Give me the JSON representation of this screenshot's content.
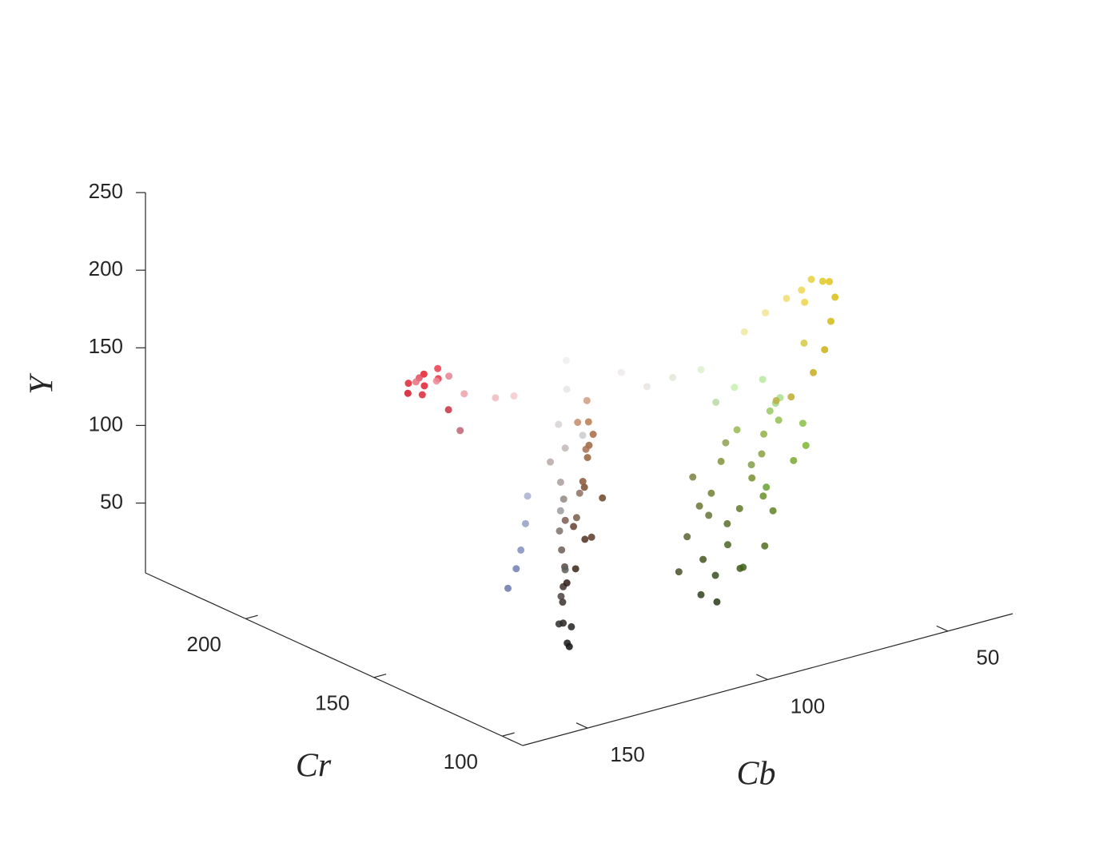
{
  "chart_data": {
    "type": "scatter3d",
    "xlabel": "Cb",
    "ylabel": "Cr",
    "zlabel": "Y",
    "xlim": [
      32,
      168
    ],
    "ylim": [
      92,
      239
    ],
    "zlim": [
      5,
      250
    ],
    "xticks": [
      50,
      100,
      150
    ],
    "yticks": [
      100,
      150,
      200
    ],
    "zticks": [
      50,
      100,
      150,
      200,
      250
    ],
    "x": [
      128,
      130,
      126,
      129,
      127,
      131,
      125,
      128,
      130,
      126,
      129,
      127,
      131,
      128,
      126,
      133,
      124,
      132,
      122,
      134,
      129,
      125,
      112,
      108,
      114,
      106,
      110,
      104,
      112,
      107,
      115,
      103,
      109,
      116,
      105,
      111,
      118,
      113,
      101,
      100,
      96,
      98,
      94,
      92,
      90,
      95,
      88,
      93,
      86,
      84,
      90,
      82,
      98,
      101,
      104,
      87,
      80,
      78,
      85,
      88,
      92,
      97,
      83,
      95,
      91,
      76,
      89,
      99,
      86,
      94,
      95,
      90,
      100,
      105,
      88,
      110,
      98,
      85,
      115,
      78,
      70,
      62,
      55,
      48,
      42,
      40,
      44,
      50,
      56,
      65,
      38,
      52,
      72,
      60,
      97,
      95,
      99,
      96,
      98,
      94,
      100,
      96,
      102,
      110,
      115,
      118,
      120,
      122,
      112,
      108,
      150,
      152,
      148,
      155,
      146
    ],
    "y": [
      130,
      128,
      132,
      131,
      134,
      129,
      136,
      133,
      131,
      135,
      132,
      133,
      130,
      131,
      134,
      127,
      138,
      126,
      140,
      125,
      136,
      129,
      150,
      152,
      148,
      155,
      150,
      156,
      146,
      152,
      145,
      158,
      148,
      144,
      153,
      147,
      140,
      152,
      155,
      118,
      118,
      120,
      116,
      119,
      117,
      121,
      115,
      120,
      114,
      116,
      118,
      113,
      124,
      122,
      121,
      112,
      110,
      108,
      111,
      110,
      114,
      116,
      115,
      122,
      121,
      112,
      108,
      120,
      118,
      110,
      112,
      108,
      118,
      122,
      104,
      125,
      115,
      110,
      128,
      132,
      135,
      138,
      142,
      148,
      152,
      150,
      146,
      140,
      136,
      132,
      155,
      145,
      128,
      134,
      230,
      233,
      228,
      226,
      235,
      229,
      232,
      222,
      225,
      215,
      200,
      185,
      170,
      160,
      195,
      205,
      118,
      117,
      119,
      116,
      121
    ],
    "z": [
      15,
      20,
      25,
      30,
      40,
      50,
      60,
      75,
      90,
      105,
      120,
      140,
      160,
      180,
      195,
      35,
      45,
      70,
      85,
      110,
      130,
      150,
      40,
      55,
      70,
      85,
      95,
      110,
      120,
      130,
      140,
      100,
      60,
      80,
      120,
      150,
      100,
      30,
      75,
      40,
      50,
      60,
      70,
      80,
      90,
      100,
      110,
      120,
      125,
      135,
      140,
      145,
      110,
      75,
      55,
      100,
      120,
      130,
      90,
      70,
      55,
      35,
      150,
      85,
      130,
      140,
      110,
      95,
      115,
      60,
      175,
      180,
      185,
      180,
      170,
      175,
      165,
      160,
      185,
      185,
      190,
      192,
      190,
      188,
      180,
      170,
      160,
      150,
      142,
      135,
      175,
      178,
      140,
      165,
      88,
      92,
      85,
      95,
      80,
      98,
      90,
      78,
      100,
      110,
      125,
      130,
      140,
      150,
      95,
      120,
      100,
      90,
      115,
      80,
      130
    ],
    "colors": [
      "#111111",
      "#1a1a1a",
      "#222222",
      "#2a2522",
      "#3a302c",
      "#4a423e",
      "#5a4a44",
      "#6b5d57",
      "#7d706b",
      "#948680",
      "#a89e9a",
      "#c0b8b6",
      "#d6d2d2",
      "#e8e6e8",
      "#f0eef0",
      "#2e2e2c",
      "#40302a",
      "#5e5e58",
      "#7a5c50",
      "#9a9aa0",
      "#b8a8a4",
      "#c8ccd0",
      "#3a2418",
      "#4e3020",
      "#664030",
      "#7a4c30",
      "#8a5838",
      "#9e6440",
      "#a8704c",
      "#b67a50",
      "#c48a68",
      "#966038",
      "#5a3a26",
      "#7a5a48",
      "#a66a42",
      "#d09c80",
      "#8e7060",
      "#2e1c14",
      "#6e4428",
      "#30401c",
      "#3a4c20",
      "#44561f",
      "#4c6424",
      "#587028",
      "#60782c",
      "#6e8030",
      "#78902f",
      "#809438",
      "#88a040",
      "#90b048",
      "#98b850",
      "#90c050",
      "#7c8040",
      "#5a6030",
      "#46502a",
      "#6a9028",
      "#78a830",
      "#80b430",
      "#5e8424",
      "#4e6e1e",
      "#405a1c",
      "#283818",
      "#98c860",
      "#667436",
      "#8ca050",
      "#88c048",
      "#66a030",
      "#6c7434",
      "#809c48",
      "#3e6418",
      "#c8f0b0",
      "#b8eaa0",
      "#dcf0d0",
      "#e0e8d8",
      "#a8e090",
      "#e8e4e0",
      "#b8dca0",
      "#a0d888",
      "#f0eaea",
      "#f0e8a0",
      "#f4e490",
      "#f0dc70",
      "#eed850",
      "#e8d040",
      "#e0c820",
      "#d8c010",
      "#d4b810",
      "#ccb010",
      "#c8ac20",
      "#c0ac30",
      "#e0c420",
      "#ecd448",
      "#b8b040",
      "#d8c840",
      "#e02030",
      "#e81c2c",
      "#d82838",
      "#e83040",
      "#d01828",
      "#f03848",
      "#e02432",
      "#c83040",
      "#e05060",
      "#e87080",
      "#f08898",
      "#f0a0aa",
      "#f0b8c0",
      "#f4c8cc",
      "#c06070",
      "#e88090",
      "#8090c0",
      "#7080b0",
      "#90a0c8",
      "#6878a8",
      "#a8b0d0"
    ]
  }
}
